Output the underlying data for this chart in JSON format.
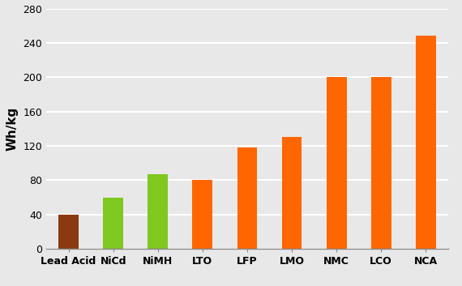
{
  "categories": [
    "Lead Acid",
    "NiCd",
    "NiMH",
    "LTO",
    "LFP",
    "LMO",
    "NMC",
    "LCO",
    "NCA"
  ],
  "values": [
    40,
    60,
    87,
    80,
    118,
    130,
    200,
    200,
    248
  ],
  "bar_colors": [
    "#8B3A0F",
    "#7EC820",
    "#7EC820",
    "#FF6600",
    "#FF6600",
    "#FF6600",
    "#FF6600",
    "#FF6600",
    "#FF6600"
  ],
  "ylabel": "Wh/kg",
  "ylim": [
    0,
    280
  ],
  "yticks": [
    0,
    40,
    80,
    120,
    160,
    200,
    240,
    280
  ],
  "background_color": "#E8E8E8",
  "plot_bg_color": "#E8E8E8",
  "grid_color": "#FFFFFF",
  "bar_width": 0.45,
  "ylabel_fontsize": 11,
  "tick_fontsize": 9,
  "grid_linewidth": 1.5
}
